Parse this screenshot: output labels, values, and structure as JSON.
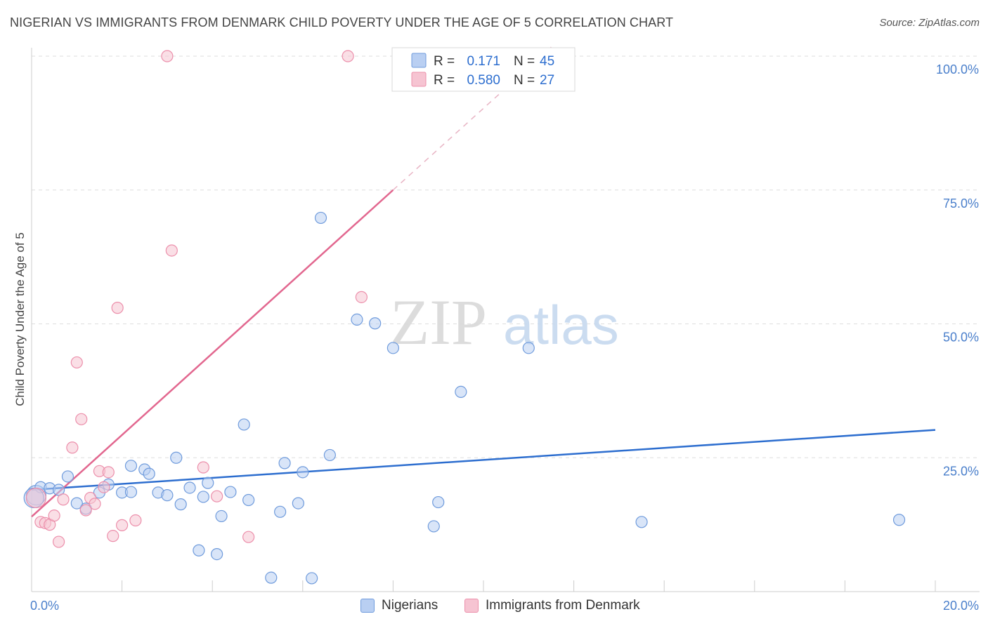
{
  "title": "NIGERIAN VS IMMIGRANTS FROM DENMARK CHILD POVERTY UNDER THE AGE OF 5 CORRELATION CHART",
  "source": "Source: ZipAtlas.com",
  "watermark": {
    "zip": "ZIP",
    "atlas": "atlas"
  },
  "colors": {
    "blue_fill": "#b9cff2",
    "blue_stroke": "#6f9bdc",
    "blue_line": "#2d6ecf",
    "pink_fill": "#f6c4d2",
    "pink_stroke": "#ec8fab",
    "pink_line": "#e2678f",
    "tick_text": "#4a7fcb",
    "grid": "#dddddd"
  },
  "legend": {
    "rows": [
      {
        "r_label": "R =",
        "r_value": "0.171",
        "n_label": "N =",
        "n_value": "45",
        "series": "blue"
      },
      {
        "r_label": "R =",
        "r_value": "0.580",
        "n_label": "N =",
        "n_value": "27",
        "series": "pink"
      }
    ]
  },
  "bottom_legend": {
    "series1": "Nigerians",
    "series2": "Immigrants from Denmark"
  },
  "chart_data": {
    "type": "scatter",
    "xlabel": "",
    "ylabel": "Child Poverty Under the Age of 5",
    "xlim": [
      0,
      20
    ],
    "ylim": [
      0,
      100
    ],
    "x_tick_labels": [
      "0.0%",
      "20.0%"
    ],
    "y_ticks": [
      25,
      50,
      75,
      100
    ],
    "y_tick_labels": [
      "25.0%",
      "50.0%",
      "75.0%",
      "100.0%"
    ],
    "grid": true,
    "series": [
      {
        "name": "Nigerians",
        "color": "blue",
        "r": 0.171,
        "n": 45,
        "trend": {
          "x0": 0,
          "y0": 19.0,
          "x1": 20,
          "y1": 30.2,
          "dashed_from": null
        },
        "points": [
          [
            0.1,
            18.0
          ],
          [
            0.2,
            19.5
          ],
          [
            0.4,
            19.3
          ],
          [
            0.6,
            19.0
          ],
          [
            0.8,
            21.5
          ],
          [
            1.2,
            15.5
          ],
          [
            1.0,
            16.5
          ],
          [
            1.5,
            18.5
          ],
          [
            1.7,
            20.0
          ],
          [
            2.0,
            18.5
          ],
          [
            2.2,
            18.6
          ],
          [
            2.2,
            23.5
          ],
          [
            2.5,
            22.8
          ],
          [
            2.6,
            22.0
          ],
          [
            2.8,
            18.5
          ],
          [
            3.0,
            18.0
          ],
          [
            3.2,
            25.0
          ],
          [
            3.3,
            16.3
          ],
          [
            3.5,
            19.4
          ],
          [
            3.7,
            7.7
          ],
          [
            3.8,
            17.7
          ],
          [
            3.9,
            20.3
          ],
          [
            4.1,
            7.0
          ],
          [
            4.2,
            14.1
          ],
          [
            4.4,
            18.6
          ],
          [
            4.7,
            31.2
          ],
          [
            4.8,
            17.1
          ],
          [
            5.3,
            2.6
          ],
          [
            5.5,
            14.9
          ],
          [
            5.6,
            24.0
          ],
          [
            5.9,
            16.5
          ],
          [
            6.0,
            22.3
          ],
          [
            6.2,
            2.5
          ],
          [
            6.4,
            69.8
          ],
          [
            6.6,
            25.5
          ],
          [
            7.2,
            50.8
          ],
          [
            7.6,
            50.1
          ],
          [
            8.0,
            45.5
          ],
          [
            8.9,
            12.2
          ],
          [
            9.0,
            16.7
          ],
          [
            9.5,
            37.3
          ],
          [
            11.0,
            45.5
          ],
          [
            13.5,
            13.0
          ],
          [
            19.2,
            13.4
          ],
          [
            0.05,
            17.5
          ]
        ]
      },
      {
        "name": "Immigrants from Denmark",
        "color": "pink",
        "r": 0.58,
        "n": 27,
        "trend": {
          "x0": 0,
          "y0": 14.0,
          "x1": 8.0,
          "y1": 75.0,
          "dashed_to_x": 11.5,
          "dashed_to_y": 101.7
        },
        "points": [
          [
            0.1,
            17.5
          ],
          [
            0.2,
            13.0
          ],
          [
            0.3,
            12.8
          ],
          [
            0.4,
            12.5
          ],
          [
            0.5,
            14.2
          ],
          [
            0.6,
            9.3
          ],
          [
            0.7,
            17.2
          ],
          [
            0.9,
            26.9
          ],
          [
            1.0,
            42.8
          ],
          [
            1.1,
            32.2
          ],
          [
            1.2,
            15.2
          ],
          [
            1.3,
            17.5
          ],
          [
            1.4,
            16.4
          ],
          [
            1.5,
            22.5
          ],
          [
            1.6,
            19.5
          ],
          [
            1.7,
            22.3
          ],
          [
            1.8,
            10.4
          ],
          [
            1.9,
            53.0
          ],
          [
            2.0,
            12.4
          ],
          [
            2.3,
            13.3
          ],
          [
            3.0,
            100.0
          ],
          [
            3.1,
            63.7
          ],
          [
            3.8,
            23.2
          ],
          [
            4.1,
            17.8
          ],
          [
            4.8,
            10.2
          ],
          [
            7.3,
            55.0
          ],
          [
            7.0,
            100.0
          ]
        ]
      }
    ]
  }
}
